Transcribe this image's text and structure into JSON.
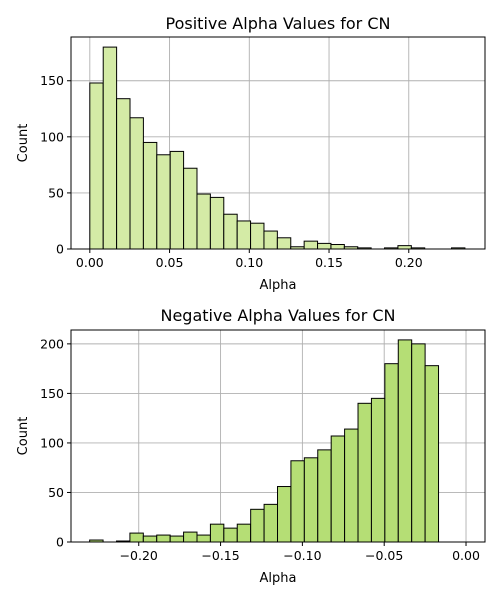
{
  "chart_data": [
    {
      "type": "bar",
      "title": "Positive Alpha Values for CN",
      "xlabel": "Alpha",
      "ylabel": "Count",
      "bar_color": "#d4eba6",
      "edge_color": "#000000",
      "grid": true,
      "xlim": [
        -0.0118,
        0.2478
      ],
      "ylim": [
        0,
        189
      ],
      "xticks": [
        0.0,
        0.05,
        0.1,
        0.15,
        0.2
      ],
      "xtick_labels": [
        "0.00",
        "0.05",
        "0.10",
        "0.15",
        "0.20"
      ],
      "yticks": [
        0,
        50,
        100,
        150
      ],
      "ytick_labels": [
        "0",
        "50",
        "100",
        "150"
      ],
      "bin_start": 0.0,
      "bin_width": 0.0084,
      "values": [
        148,
        180,
        134,
        117,
        95,
        84,
        87,
        72,
        49,
        46,
        31,
        25,
        23,
        16,
        10,
        2,
        7,
        5,
        4,
        2,
        1,
        0,
        1,
        3,
        1,
        0,
        0,
        1
      ]
    },
    {
      "type": "bar",
      "title": "Negative Alpha Values for CN",
      "xlabel": "Alpha",
      "ylabel": "Count",
      "bar_color": "#b5de75",
      "edge_color": "#000000",
      "grid": true,
      "xlim": [
        -0.2414,
        0.0116
      ],
      "ylim": [
        0,
        214
      ],
      "xticks": [
        -0.2,
        -0.15,
        -0.1,
        -0.05,
        0.0
      ],
      "xtick_labels": [
        "−0.20",
        "−0.15",
        "−0.10",
        "−0.05",
        "0.00"
      ],
      "yticks": [
        0,
        50,
        100,
        150,
        200
      ],
      "ytick_labels": [
        "0",
        "50",
        "100",
        "150",
        "200"
      ],
      "bin_start": -0.23,
      "bin_width": 0.0082,
      "values": [
        2,
        0,
        1,
        9,
        6,
        7,
        6,
        10,
        7,
        18,
        14,
        18,
        33,
        38,
        56,
        82,
        85,
        93,
        107,
        114,
        140,
        145,
        180,
        204,
        200,
        178
      ]
    }
  ]
}
